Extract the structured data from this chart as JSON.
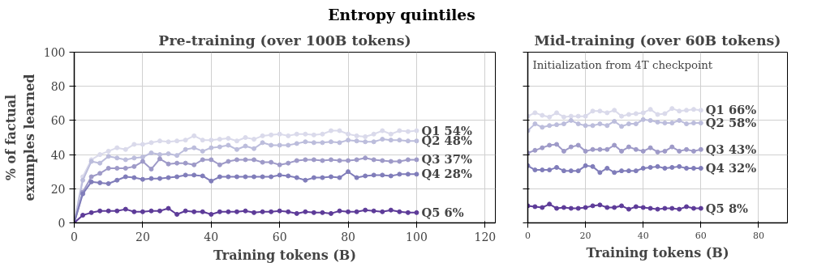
{
  "chart_data": [
    {
      "type": "other",
      "title": "Entropy quintiles"
    },
    {
      "type": "line",
      "title": "Pre-training (over 100B tokens)",
      "xlabel": "Training tokens (B)",
      "ylabel": "% of factual\nexamples learned",
      "x": [
        0,
        2.5,
        5,
        7.5,
        10,
        12.5,
        15,
        17.5,
        20,
        22.5,
        25,
        27.5,
        30,
        32.5,
        35,
        37.5,
        40,
        42.5,
        45,
        47.5,
        50,
        52.5,
        55,
        57.5,
        60,
        62.5,
        65,
        67.5,
        70,
        72.5,
        75,
        77.5,
        80,
        82.5,
        85,
        87.5,
        90,
        92.5,
        95,
        97.5,
        100
      ],
      "xlim": [
        0,
        123
      ],
      "xticks": [
        0,
        20,
        40,
        60,
        80,
        100,
        120
      ],
      "ylim": [
        0,
        100
      ],
      "yticks": [
        0,
        20,
        40,
        60,
        80,
        100
      ],
      "grid": true,
      "marker": "circle",
      "line_style": "solid",
      "series": [
        {
          "name": "Q1",
          "color": "#dadaeb",
          "values": [
            0,
            27,
            37,
            40,
            42,
            44,
            43,
            46,
            46,
            47,
            48,
            47.5,
            48,
            48.5,
            51,
            48.5,
            48.5,
            49,
            49.5,
            48,
            50,
            49,
            51,
            51.5,
            52,
            51,
            52,
            52,
            51.5,
            52,
            54,
            54,
            52,
            51,
            50.5,
            52,
            54,
            52,
            54,
            53.5,
            54
          ],
          "value_labels": [
            null,
            null,
            null,
            null,
            null,
            null,
            null,
            null,
            null,
            null,
            null,
            null,
            null,
            null,
            null,
            null,
            null,
            null,
            null,
            null,
            null,
            null,
            null,
            null,
            null,
            null,
            null,
            null,
            null,
            null,
            null,
            null,
            null,
            null,
            null,
            null,
            null,
            null,
            null,
            null,
            "54%"
          ]
        },
        {
          "name": "Q2",
          "color": "#bcbddc",
          "values": [
            0,
            25,
            36,
            35,
            39,
            38,
            37,
            38,
            38.5,
            41,
            40,
            40.5,
            39.5,
            43,
            44,
            42,
            44,
            44.5,
            45.5,
            43,
            45,
            43.5,
            47,
            45.5,
            45.5,
            45.5,
            46.5,
            47.5,
            47,
            47,
            47.5,
            47,
            48.5,
            48,
            47.5,
            47.5,
            49,
            48.5,
            48.5,
            48,
            48
          ],
          "value_labels": [
            null,
            null,
            null,
            null,
            null,
            null,
            null,
            null,
            null,
            null,
            null,
            null,
            null,
            null,
            null,
            null,
            null,
            null,
            null,
            null,
            null,
            null,
            null,
            null,
            null,
            null,
            null,
            null,
            null,
            null,
            null,
            null,
            null,
            null,
            null,
            null,
            null,
            null,
            null,
            null,
            "48%"
          ]
        },
        {
          "name": "Q3",
          "color": "#9e9ac8",
          "values": [
            0,
            18,
            27,
            29,
            32,
            32,
            32,
            33,
            36,
            31.5,
            37.5,
            34.5,
            35,
            35,
            34,
            37,
            37,
            34,
            36,
            37,
            37,
            37,
            35.5,
            35.5,
            34,
            35,
            36.5,
            37,
            37,
            36.5,
            37,
            36.5,
            36.5,
            37,
            38,
            37,
            36.5,
            36,
            36,
            37,
            37
          ],
          "value_labels": [
            null,
            null,
            null,
            null,
            null,
            null,
            null,
            null,
            null,
            null,
            null,
            null,
            null,
            null,
            null,
            null,
            null,
            null,
            null,
            null,
            null,
            null,
            null,
            null,
            null,
            null,
            null,
            null,
            null,
            null,
            null,
            null,
            null,
            null,
            null,
            null,
            null,
            null,
            null,
            null,
            "37%"
          ]
        },
        {
          "name": "Q4",
          "color": "#807dba",
          "values": [
            0,
            17,
            24,
            23.5,
            23,
            25,
            27,
            26.5,
            25.5,
            26,
            26,
            26.5,
            27,
            28,
            28,
            27.5,
            24.5,
            27,
            27,
            27,
            27,
            27,
            27,
            27,
            28,
            27.5,
            26.5,
            25,
            26.5,
            26.5,
            27,
            26.5,
            30,
            26.5,
            27.5,
            28,
            28,
            27.5,
            28.5,
            28.5,
            28.5
          ],
          "value_labels": [
            null,
            null,
            null,
            null,
            null,
            null,
            null,
            null,
            null,
            null,
            null,
            null,
            null,
            null,
            null,
            null,
            null,
            null,
            null,
            null,
            null,
            null,
            null,
            null,
            null,
            null,
            null,
            null,
            null,
            null,
            null,
            null,
            null,
            null,
            null,
            null,
            null,
            null,
            null,
            null,
            "28%"
          ]
        },
        {
          "name": "Q5",
          "color": "#5e3c99",
          "values": [
            0,
            4.5,
            6,
            7,
            7,
            7,
            8,
            6.5,
            6.5,
            7,
            7,
            8.5,
            5,
            7,
            6.5,
            6.5,
            5,
            6.5,
            6.5,
            6.5,
            7,
            6,
            6.5,
            6.5,
            7,
            6.5,
            5.5,
            6.5,
            6,
            6,
            5.5,
            7,
            6.5,
            6.5,
            7.5,
            7,
            6.5,
            7.5,
            6.5,
            6,
            6
          ],
          "value_labels": [
            null,
            null,
            null,
            null,
            null,
            null,
            null,
            null,
            null,
            null,
            null,
            null,
            null,
            null,
            null,
            null,
            null,
            null,
            null,
            null,
            null,
            null,
            null,
            null,
            null,
            null,
            null,
            null,
            null,
            null,
            null,
            null,
            null,
            null,
            null,
            null,
            null,
            null,
            null,
            null,
            "6%"
          ]
        }
      ]
    },
    {
      "type": "line",
      "title": "Mid-training (over 60B tokens)",
      "xlabel": "Training tokens (B)",
      "annotations": [
        "Initialization from 4T checkpoint"
      ],
      "x": [
        0,
        2.5,
        5,
        7.5,
        10,
        12.5,
        15,
        17.5,
        20,
        22.5,
        25,
        27.5,
        30,
        32.5,
        35,
        37.5,
        40,
        42.5,
        45,
        47.5,
        50,
        52.5,
        55,
        57.5,
        60
      ],
      "xlim": [
        0,
        90
      ],
      "xticks": [
        0,
        20,
        40,
        60,
        80
      ],
      "ylim": [
        0,
        100
      ],
      "yticks": [
        0,
        20,
        40,
        60,
        80,
        100
      ],
      "tick_labels": "x",
      "grid": true,
      "marker": "circle",
      "line_style": "solid",
      "series": [
        {
          "name": "Q1",
          "color": "#dadaeb",
          "values": [
            62.5,
            64.5,
            63,
            62,
            64.5,
            62,
            62.5,
            62.5,
            62.5,
            65.5,
            65.5,
            64.5,
            66,
            62.5,
            63.5,
            64,
            64.5,
            66.5,
            63.5,
            64,
            67,
            65.5,
            66,
            66.5,
            66
          ],
          "value_labels": [
            null,
            null,
            null,
            null,
            null,
            null,
            null,
            null,
            null,
            null,
            null,
            null,
            null,
            null,
            null,
            null,
            null,
            null,
            null,
            null,
            null,
            null,
            null,
            null,
            "66%"
          ]
        },
        {
          "name": "Q2",
          "color": "#bcbddc",
          "values": [
            54,
            58,
            56,
            57,
            57.5,
            58,
            60,
            58,
            57,
            57,
            58,
            57,
            59.5,
            56.5,
            58,
            58,
            60.5,
            60,
            59,
            58.5,
            58.5,
            60,
            58,
            58.5,
            58.5
          ],
          "value_labels": [
            null,
            null,
            null,
            null,
            null,
            null,
            null,
            null,
            null,
            null,
            null,
            null,
            null,
            null,
            null,
            null,
            null,
            null,
            null,
            null,
            null,
            null,
            null,
            null,
            "58%"
          ]
        },
        {
          "name": "Q3",
          "color": "#9e9ac8",
          "values": [
            41,
            42.5,
            44,
            45.5,
            46,
            42,
            44.5,
            45.5,
            42,
            43,
            43,
            43,
            45.5,
            42,
            44.5,
            43,
            42,
            44,
            41.5,
            42,
            44.5,
            42,
            43,
            42,
            43
          ],
          "value_labels": [
            null,
            null,
            null,
            null,
            null,
            null,
            null,
            null,
            null,
            null,
            null,
            null,
            null,
            null,
            null,
            null,
            null,
            null,
            null,
            null,
            null,
            null,
            null,
            null,
            "43%"
          ]
        },
        {
          "name": "Q4",
          "color": "#807dba",
          "values": [
            33.5,
            31,
            31,
            31,
            32.5,
            30.5,
            30.5,
            30.5,
            33.5,
            33,
            29.5,
            32,
            29.5,
            30.5,
            30.5,
            30.5,
            32,
            32.5,
            33,
            32,
            32.5,
            33,
            32,
            32,
            32
          ],
          "value_labels": [
            null,
            null,
            null,
            null,
            null,
            null,
            null,
            null,
            null,
            null,
            null,
            null,
            null,
            null,
            null,
            null,
            null,
            null,
            null,
            null,
            null,
            null,
            null,
            null,
            "32%"
          ]
        },
        {
          "name": "Q5",
          "color": "#5e3c99",
          "values": [
            10,
            9.5,
            9,
            11,
            8.5,
            9,
            8.5,
            8.5,
            9,
            10,
            10.5,
            9,
            9,
            10,
            8,
            9.5,
            9,
            8.5,
            8,
            8.5,
            8.5,
            8,
            9.5,
            8.5,
            8.5
          ],
          "value_labels": [
            null,
            null,
            null,
            null,
            null,
            null,
            null,
            null,
            null,
            null,
            null,
            null,
            null,
            null,
            null,
            null,
            null,
            null,
            null,
            null,
            null,
            null,
            null,
            null,
            "8%"
          ]
        }
      ]
    }
  ]
}
